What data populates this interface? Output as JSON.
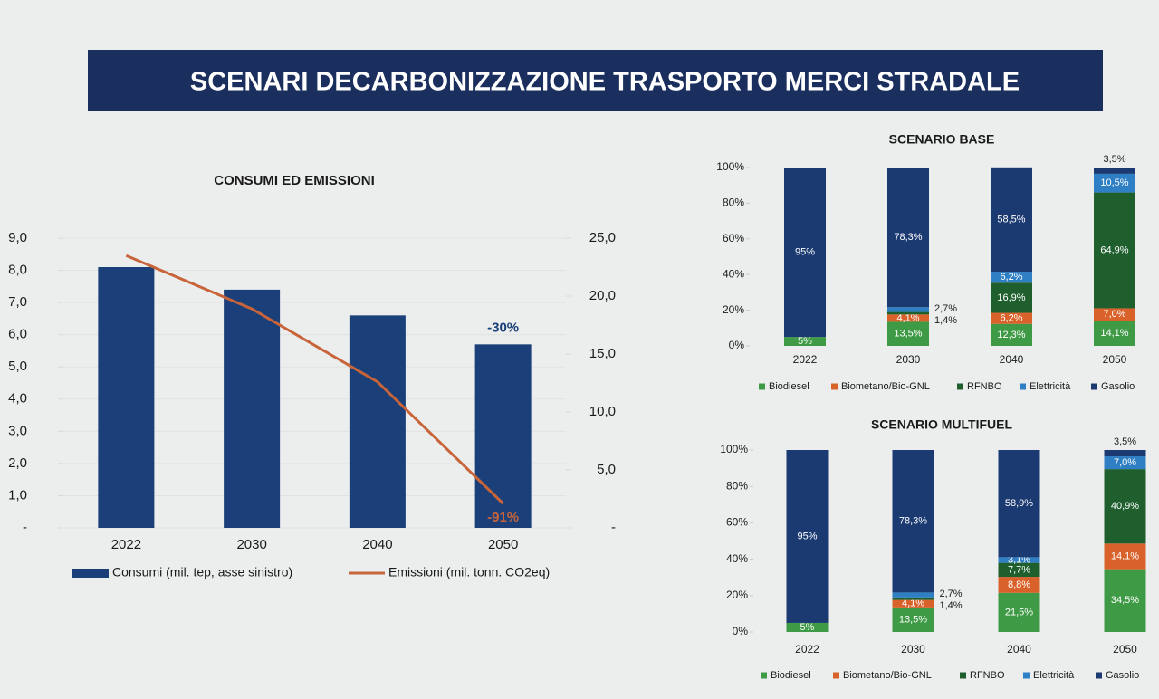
{
  "title": "SCENARI DECARBONIZZAZIONE TRASPORTO MERCI STRADALE",
  "chart_data": [
    {
      "type": "combo",
      "title": "CONSUMI ED EMISSIONI",
      "categories": [
        "2022",
        "2030",
        "2040",
        "2050"
      ],
      "series": [
        {
          "name": "Consumi (mil. tep, asse sinistro)",
          "type": "bar",
          "color": "#1b3f78",
          "values": [
            8.1,
            7.4,
            6.6,
            5.7
          ]
        },
        {
          "name": "Emissioni (mil. tonn. CO2eq)",
          "type": "line",
          "color": "#c8643a",
          "axis": "y2",
          "values": [
            23.5,
            18.9,
            12.6,
            2.1
          ]
        }
      ],
      "ylim": [
        0,
        9
      ],
      "yticks": [
        {
          "value": 0,
          "label": "-"
        },
        {
          "value": 1,
          "label": "1,0"
        },
        {
          "value": 2,
          "label": "2,0"
        },
        {
          "value": 3,
          "label": "3,0"
        },
        {
          "value": 4,
          "label": "4,0"
        },
        {
          "value": 5,
          "label": "5,0"
        },
        {
          "value": 6,
          "label": "6,0"
        },
        {
          "value": 7,
          "label": "7,0"
        },
        {
          "value": 8,
          "label": "8,0"
        },
        {
          "value": 9,
          "label": "9,0"
        }
      ],
      "y2lim": [
        0,
        25
      ],
      "y2ticks": [
        {
          "value": 0,
          "label": "-"
        },
        {
          "value": 5,
          "label": "5,0"
        },
        {
          "value": 10,
          "label": "10,0"
        },
        {
          "value": 15,
          "label": "15,0"
        },
        {
          "value": 20,
          "label": "20,0"
        },
        {
          "value": 25,
          "label": "25,0"
        }
      ],
      "annotations": [
        "-30%",
        "-91%"
      ],
      "grid": true
    },
    {
      "type": "stacked",
      "title": "SCENARIO BASE",
      "categories": [
        "2022",
        "2030",
        "2040",
        "2050"
      ],
      "series": [
        {
          "name": "Biodiesel",
          "color": "#3f9a45",
          "values": [
            5,
            13.5,
            12.3,
            14.1
          ],
          "value_labels": [
            "5%",
            "13,5%",
            "12,3%",
            "14,1%"
          ]
        },
        {
          "name": "Biometano/Bio-GNL",
          "color": "#d9622b",
          "values": [
            null,
            4.1,
            6.2,
            7.0
          ],
          "value_labels": [
            null,
            "4,1%",
            "6,2%",
            "7,0%"
          ]
        },
        {
          "name": "RFNBO",
          "color": "#1f5f2e",
          "values": [
            null,
            1.4,
            16.9,
            64.9
          ],
          "value_labels": [
            null,
            "1,4%",
            "16,9%",
            "64,9%"
          ]
        },
        {
          "name": "Elettricità",
          "color": "#2f7fc4",
          "values": [
            null,
            2.7,
            6.2,
            10.5
          ],
          "value_labels": [
            null,
            "2,7%",
            "6,2%",
            "10,5%"
          ]
        },
        {
          "name": "Gasolio",
          "color": "#1b3a72",
          "values": [
            95,
            78.3,
            58.5,
            3.5
          ],
          "value_labels": [
            "95%",
            "78,3%",
            "58,5%",
            "3,5%"
          ]
        }
      ],
      "ylim": [
        0,
        100
      ],
      "yticks": [
        {
          "value": 0,
          "label": "0%"
        },
        {
          "value": 20,
          "label": "20%"
        },
        {
          "value": 40,
          "label": "40%"
        },
        {
          "value": 60,
          "label": "60%"
        },
        {
          "value": 80,
          "label": "80%"
        },
        {
          "value": 100,
          "label": "100%"
        }
      ],
      "grid": false
    },
    {
      "type": "stacked",
      "title": "SCENARIO MULTIFUEL",
      "categories": [
        "2022",
        "2030",
        "2040",
        "2050"
      ],
      "series": [
        {
          "name": "Biodiesel",
          "color": "#3f9a45",
          "values": [
            5,
            13.5,
            21.5,
            34.5
          ],
          "value_labels": [
            "5%",
            "13,5%",
            "21,5%",
            "34,5%"
          ]
        },
        {
          "name": "Biometano/Bio-GNL",
          "color": "#d9622b",
          "values": [
            null,
            4.1,
            8.8,
            14.1
          ],
          "value_labels": [
            null,
            "4,1%",
            "8,8%",
            "14,1%"
          ]
        },
        {
          "name": "RFNBO",
          "color": "#1f5f2e",
          "values": [
            null,
            1.4,
            7.7,
            40.9
          ],
          "value_labels": [
            null,
            "1,4%",
            "7,7%",
            "40,9%"
          ]
        },
        {
          "name": "Elettricità",
          "color": "#2f7fc4",
          "values": [
            null,
            2.7,
            3.1,
            7.0
          ],
          "value_labels": [
            null,
            "2,7%",
            "3,1%",
            "7,0%"
          ]
        },
        {
          "name": "Gasolio",
          "color": "#1b3a72",
          "values": [
            95,
            78.3,
            58.9,
            3.5
          ],
          "value_labels": [
            "95%",
            "78,3%",
            "58,9%",
            "3,5%"
          ]
        }
      ],
      "ylim": [
        0,
        100
      ],
      "yticks": [
        {
          "value": 0,
          "label": "0%"
        },
        {
          "value": 20,
          "label": "20%"
        },
        {
          "value": 40,
          "label": "40%"
        },
        {
          "value": 60,
          "label": "60%"
        },
        {
          "value": 80,
          "label": "80%"
        },
        {
          "value": 100,
          "label": "100%"
        }
      ],
      "grid": false
    }
  ]
}
